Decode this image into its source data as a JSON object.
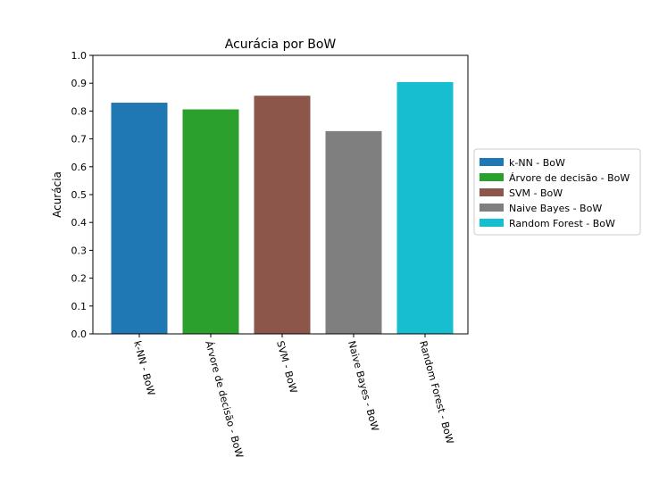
{
  "chart_data": {
    "type": "bar",
    "title": "Acurácia por BoW",
    "xlabel": "",
    "ylabel": "Acurácia",
    "ylim": [
      0.0,
      1.0
    ],
    "yticks": [
      "0.0",
      "0.1",
      "0.2",
      "0.3",
      "0.4",
      "0.5",
      "0.6",
      "0.7",
      "0.8",
      "0.9",
      "1.0"
    ],
    "categories": [
      "k-NN - BoW",
      "Árvore de decisão - BoW",
      "SVM - BoW",
      "Naive Bayes - BoW",
      "Random Forest - BoW"
    ],
    "values": [
      0.83,
      0.806,
      0.855,
      0.728,
      0.904
    ],
    "colors": [
      "#1f77b4",
      "#2ca02c",
      "#8c564b",
      "#7f7f7f",
      "#17becf"
    ],
    "legend": {
      "placement": "center-right-outside",
      "entries": [
        "k-NN - BoW",
        "Árvore de decisão - BoW",
        "SVM - BoW",
        "Naive Bayes - BoW",
        "Random Forest - BoW"
      ]
    },
    "grid": false
  }
}
